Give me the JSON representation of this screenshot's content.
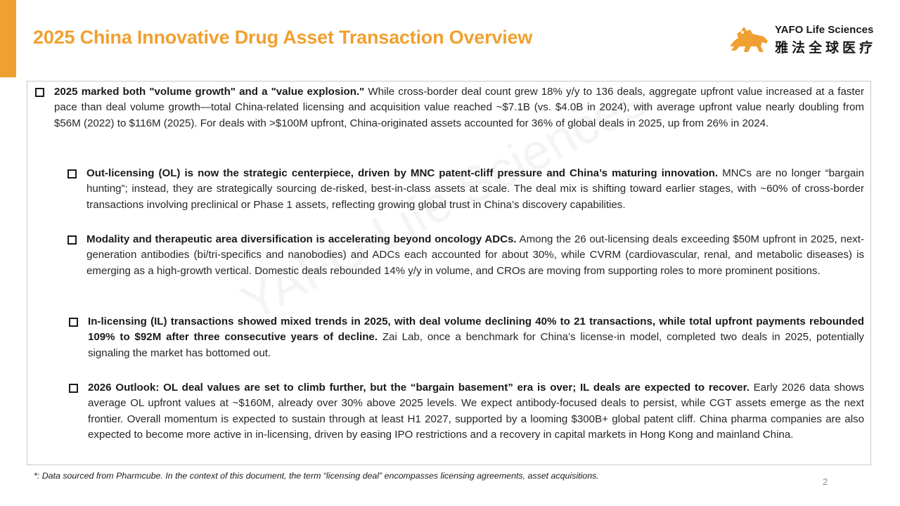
{
  "header": {
    "title": "2025 China Innovative Drug Asset Transaction Overview",
    "accent_color": "#f0a030"
  },
  "logo": {
    "name_en": "YAFO Life Sciences",
    "name_cn": "雅法全球医疗",
    "icon": "lion-icon",
    "icon_color": "#f0a030"
  },
  "watermark": "YAFO Life Sciences",
  "bullets": [
    {
      "bold": "2025 marked both \"volume growth\" and a \"value explosion.\"",
      "text": " While cross-border deal count grew 18% y/y to 136 deals, aggregate upfront value increased at a faster pace than deal volume growth—total China-related licensing and acquisition value reached ~$7.1B (vs. $4.0B in 2024), with average upfront value nearly doubling from $56M (2022) to $116M (2025). For deals with >$100M upfront, China-originated assets accounted for 36% of global deals in 2025, up from 26% in 2024."
    },
    {
      "bold": "Out-licensing (OL) is now the strategic centerpiece, driven by MNC patent-cliff pressure and China’s maturing innovation.",
      "text": " MNCs are no longer “bargain hunting”; instead, they are strategically sourcing de-risked, best-in-class assets at scale. The deal mix is shifting toward earlier stages, with ~60% of cross-border transactions involving preclinical or Phase 1 assets, reflecting growing global trust in China’s discovery capabilities."
    },
    {
      "bold": "Modality and therapeutic area diversification is accelerating beyond oncology ADCs.",
      "text": " Among the 26 out-licensing deals exceeding $50M upfront in 2025, next-generation antibodies (bi/tri-specifics and nanobodies) and ADCs each accounted for about 30%, while CVRM (cardiovascular, renal, and metabolic diseases) is emerging as a high-growth vertical. Domestic deals rebounded 14% y/y in volume, and CROs are moving from supporting roles to more prominent positions."
    },
    {
      "bold": "In-licensing (IL) transactions showed mixed trends in 2025, with deal volume declining 40% to 21 transactions, while total upfront payments rebounded 109% to $92M after three consecutive years of decline.",
      "text": " Zai Lab, once a benchmark for China’s license-in model, completed two deals in 2025, potentially signaling the market has bottomed out."
    },
    {
      "bold": "2026 Outlook: OL deal values are set to climb further, but the “bargain basement” era is over; IL deals are expected to recover.",
      "text": " Early 2026 data shows average OL upfront values at ~$160M, already over 30% above 2025 levels. We expect antibody-focused deals to persist, while CGT assets emerge as the next frontier. Overall momentum is expected to sustain through at least H1 2027, supported by a looming $300B+ global patent cliff. China pharma companies are also expected to become more active in in-licensing, driven by easing IPO restrictions and a recovery in capital markets in Hong Kong and mainland China."
    }
  ],
  "footnote": "*: Data sourced from Pharmcube. In the context of this document, the term “licensing deal” encompasses licensing agreements, asset acquisitions.",
  "page_number": "2"
}
